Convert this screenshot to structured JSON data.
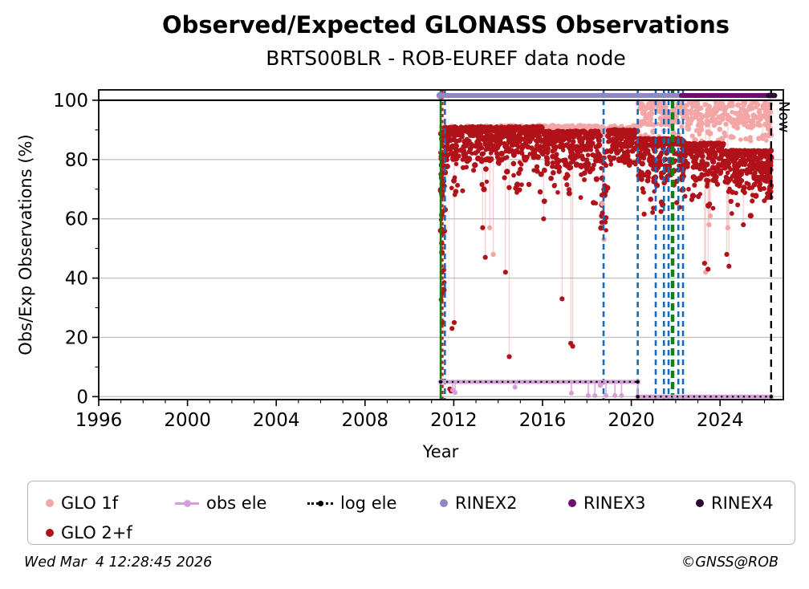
{
  "title": "Observed/Expected GLONASS Observations",
  "subtitle": "BRTS00BLR - ROB-EUREF data node",
  "footer": {
    "timestamp": "Wed Mar  4 12:28:45 2026",
    "copyright": "©GNSS@ROB"
  },
  "legend": {
    "items": [
      {
        "label": "GLO 1f",
        "marker": "dot",
        "color": "#f4a6a6"
      },
      {
        "label": "obs ele",
        "marker": "linedot",
        "color": "#d49fd4"
      },
      {
        "label": "log ele",
        "marker": "dotted",
        "color": "#000000"
      },
      {
        "label": "RINEX2",
        "marker": "dot",
        "color": "#8e89c6"
      },
      {
        "label": "RINEX3",
        "marker": "dot",
        "color": "#6e0d72"
      },
      {
        "label": "RINEX4",
        "marker": "dot",
        "color": "#2c0b33"
      },
      {
        "label": "GLO 2+f",
        "marker": "dot",
        "color": "#b11219"
      }
    ]
  },
  "chart_data": {
    "type": "scatter",
    "title": "Observed/Expected GLONASS Observations",
    "subtitle": "BRTS00BLR - ROB-EUREF data node",
    "xlabel": "Year",
    "ylabel": "Obs/Exp Observations (%)",
    "xlim": [
      1996,
      2026.85
    ],
    "ylim": [
      -1,
      103.5
    ],
    "xticks": [
      1996,
      2000,
      2004,
      2008,
      2012,
      2016,
      2020,
      2024
    ],
    "yticks": [
      0,
      20,
      40,
      60,
      80,
      100
    ],
    "grid": "horizontal",
    "grid_color": "#c3c3c3",
    "hline_100": {
      "y": 100,
      "color": "#000000",
      "width": 2.2
    },
    "now_line": {
      "x": 2026.3,
      "label": "Now",
      "color": "#000000",
      "width": 2.4,
      "dash": "9,7"
    },
    "vlines": [
      {
        "x": 2011.41,
        "color": "#0e7c0e",
        "width": 2.6,
        "dash": ""
      },
      {
        "x": 2011.5,
        "color": "#cc1414",
        "width": 2.2,
        "dash": "4,3.5"
      },
      {
        "x": 2011.6,
        "color": "#1b6ab5",
        "width": 2.6,
        "dash": "7,5"
      },
      {
        "x": 2018.75,
        "color": "#1b6ab5",
        "width": 2.6,
        "dash": "7,5"
      },
      {
        "x": 2020.29,
        "color": "#1b6ab5",
        "width": 2.6,
        "dash": "7,5"
      },
      {
        "x": 2021.1,
        "color": "#1b6ab5",
        "width": 2.6,
        "dash": "7,5"
      },
      {
        "x": 2021.47,
        "color": "#1b6ab5",
        "width": 2.6,
        "dash": "7,5"
      },
      {
        "x": 2021.68,
        "color": "#1b6ab5",
        "width": 2.6,
        "dash": "7,5"
      },
      {
        "x": 2021.86,
        "color": "#118211",
        "width": 4.5,
        "dash": "9,5"
      },
      {
        "x": 2022.12,
        "color": "#1b6ab5",
        "width": 2.6,
        "dash": "7,5"
      },
      {
        "x": 2022.33,
        "color": "#1b6ab5",
        "width": 2.6,
        "dash": "7,5"
      }
    ],
    "band_format": "[x_start_year, x_end_year, y_min_pct, y_max_pct, n_points, bias(u=uniform,t=top_dense)]",
    "outlier_format": "[x_year, y_pct, stem_top_pct(0=no_stem)]",
    "series": [
      {
        "name": "GLO 1f",
        "color": "#f4a6a6",
        "marker_r": 3.2,
        "stem_color": "rgba(244,166,166,0.5)",
        "bands": [
          [
            2011.42,
            2020.3,
            88.6,
            91.4,
            430,
            "u"
          ],
          [
            2020.3,
            2026.3,
            91.5,
            99.3,
            300,
            "u"
          ],
          [
            2020.35,
            2026.25,
            86.0,
            91.5,
            55,
            "u"
          ],
          [
            2026.1,
            2026.32,
            88.0,
            93.0,
            12,
            "u"
          ]
        ],
        "outliers": [
          [
            2011.45,
            83,
            89
          ],
          [
            2011.47,
            25,
            89
          ],
          [
            2013.62,
            57,
            89
          ],
          [
            2013.78,
            48,
            89
          ],
          [
            2018.7,
            65,
            89
          ],
          [
            2018.77,
            53,
            89
          ],
          [
            2023.35,
            42,
            92
          ],
          [
            2023.5,
            58,
            92
          ],
          [
            2023.56,
            61,
            92
          ],
          [
            2024.35,
            57,
            92
          ],
          [
            2025.92,
            88,
            92
          ]
        ]
      },
      {
        "name": "GLO 2+f",
        "color": "#b11219",
        "marker_r": 3.1,
        "stem_color": "rgba(235,160,160,0.45)",
        "bands": [
          [
            2011.4,
            2011.62,
            55,
            90,
            45,
            "u"
          ],
          [
            2011.42,
            2011.58,
            25,
            55,
            7,
            "u"
          ],
          [
            2011.6,
            2016.0,
            80,
            91,
            430,
            "t"
          ],
          [
            2011.6,
            2016.0,
            68,
            80,
            55,
            "t"
          ],
          [
            2016.0,
            2018.62,
            77.5,
            89.5,
            240,
            "t"
          ],
          [
            2016.0,
            2018.62,
            64,
            77.5,
            30,
            "t"
          ],
          [
            2018.62,
            2018.95,
            56,
            83,
            26,
            "u"
          ],
          [
            2018.95,
            2020.3,
            78,
            90,
            130,
            "t"
          ],
          [
            2020.3,
            2022.35,
            73,
            87,
            230,
            "t"
          ],
          [
            2020.3,
            2022.35,
            61,
            73,
            22,
            "t"
          ],
          [
            2022.35,
            2024.2,
            73,
            85.5,
            190,
            "t"
          ],
          [
            2022.35,
            2024.2,
            63,
            73,
            16,
            "t"
          ],
          [
            2024.2,
            2026.3,
            70,
            83,
            230,
            "t"
          ],
          [
            2024.2,
            2026.3,
            61,
            70,
            12,
            "t"
          ],
          [
            2026.08,
            2026.32,
            67,
            77,
            26,
            "u"
          ]
        ],
        "outliers": [
          [
            2011.47,
            42,
            0
          ],
          [
            2011.5,
            35,
            0
          ],
          [
            2011.53,
            25,
            0
          ],
          [
            2011.82,
            2.6,
            0
          ],
          [
            2011.88,
            1.9,
            0
          ],
          [
            2011.92,
            23,
            0
          ],
          [
            2012.02,
            25,
            79
          ],
          [
            2013.3,
            57,
            79
          ],
          [
            2013.42,
            47,
            79
          ],
          [
            2014.33,
            42,
            79
          ],
          [
            2014.5,
            13.5,
            79
          ],
          [
            2016.05,
            60,
            78
          ],
          [
            2016.88,
            33,
            78
          ],
          [
            2017.27,
            18,
            78
          ],
          [
            2017.36,
            17,
            78
          ],
          [
            2018.7,
            62,
            78
          ],
          [
            2023.3,
            45,
            74
          ],
          [
            2023.46,
            43,
            74
          ],
          [
            2023.53,
            65,
            74
          ],
          [
            2024.3,
            48,
            72
          ],
          [
            2024.4,
            44,
            72
          ],
          [
            2025.05,
            58,
            72
          ],
          [
            2025.45,
            66,
            72
          ]
        ]
      },
      {
        "name": "obs ele",
        "color": "#d49fd4",
        "line_width": 5,
        "segments": [
          [
            2011.41,
            2020.29,
            5
          ],
          [
            2020.29,
            2026.3,
            0
          ]
        ],
        "drops": [
          [
            2011.95,
            2.2
          ],
          [
            2012.06,
            1.4
          ],
          [
            2014.76,
            3.2
          ],
          [
            2017.3,
            1.2
          ],
          [
            2018.06,
            0.4
          ],
          [
            2018.36,
            0.4
          ],
          [
            2018.6,
            3.8
          ],
          [
            2018.86,
            0.4
          ],
          [
            2019.26,
            0.4
          ],
          [
            2019.56,
            0.4
          ]
        ]
      },
      {
        "name": "log ele",
        "color": "#000000",
        "style": "dotted",
        "line_width": 2.2,
        "segments": [
          [
            2011.41,
            2020.29,
            5
          ],
          [
            2020.29,
            2026.3,
            0
          ]
        ],
        "dots": [
          [
            2011.41,
            5
          ],
          [
            2020.29,
            5
          ],
          [
            2020.29,
            0
          ],
          [
            2026.3,
            0
          ]
        ]
      },
      {
        "name": "RINEX2",
        "color": "#8e89c6",
        "line_width": 6,
        "segments": [
          [
            2011.38,
            2022.25,
            101.6
          ]
        ],
        "start_dot": [
          2011.38,
          101.6
        ]
      },
      {
        "name": "RINEX3",
        "color": "#6e0d72",
        "line_width": 6,
        "segments": [
          [
            2022.25,
            2026.42,
            101.6
          ]
        ]
      },
      {
        "name": "RINEX4",
        "color": "#2c0b33",
        "line_width": 6.5,
        "segments": [
          [
            2026.18,
            2026.46,
            101.6
          ]
        ]
      }
    ]
  }
}
